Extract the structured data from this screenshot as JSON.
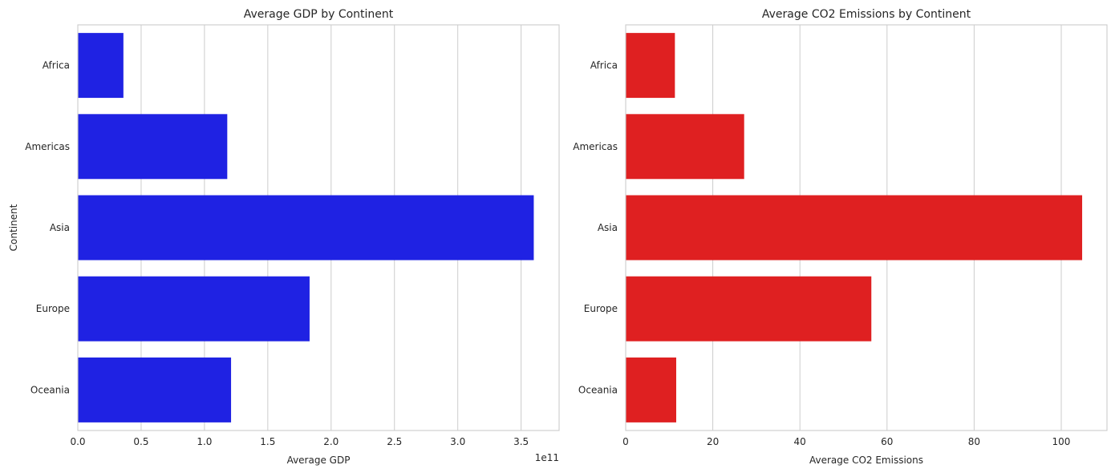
{
  "chart_data": [
    {
      "type": "bar",
      "orientation": "horizontal",
      "title": "Average GDP by Continent",
      "xlabel": "Average GDP",
      "ylabel": "Continent",
      "categories": [
        "Africa",
        "Americas",
        "Asia",
        "Europe",
        "Oceania"
      ],
      "values": [
        36000000000,
        118000000000,
        360000000000,
        183000000000,
        121000000000
      ],
      "xlim": [
        0,
        380000000000
      ],
      "ticks": [
        0,
        50000000000,
        100000000000,
        150000000000,
        200000000000,
        250000000000,
        300000000000,
        350000000000
      ],
      "tick_labels": [
        "0.0",
        "0.5",
        "1.0",
        "1.5",
        "2.0",
        "2.5",
        "3.0",
        "3.5"
      ],
      "offset_label": "1e11",
      "color": "#0000ff",
      "grid": true,
      "legend": "none"
    },
    {
      "type": "bar",
      "orientation": "horizontal",
      "title": "Average CO2 Emissions by Continent",
      "xlabel": "Average CO2 Emissions",
      "ylabel": "",
      "categories": [
        "Africa",
        "Americas",
        "Asia",
        "Europe",
        "Oceania"
      ],
      "values": [
        11.3,
        27.2,
        104.8,
        56.4,
        11.6
      ],
      "xlim": [
        0,
        110.5
      ],
      "ticks": [
        0,
        20,
        40,
        60,
        80,
        100
      ],
      "tick_labels": [
        "0",
        "20",
        "40",
        "60",
        "80",
        "100"
      ],
      "offset_label": "",
      "color": "#ff0000",
      "grid": true,
      "legend": "none"
    }
  ]
}
